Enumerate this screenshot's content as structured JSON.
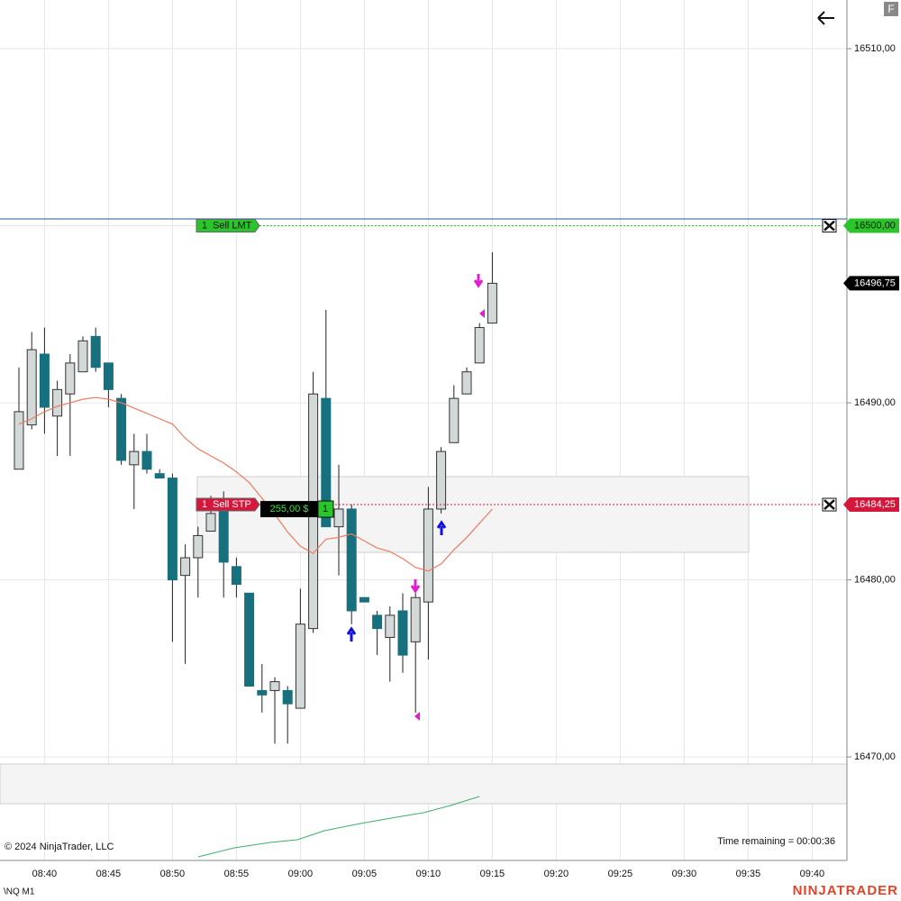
{
  "chart_data": {
    "type": "candlestick",
    "categories": [
      null,
      null,
      "08:40",
      null,
      null,
      null,
      null,
      "08:45",
      null,
      null,
      null,
      null,
      "08:50",
      null,
      null,
      null,
      null,
      "08:55",
      null,
      null,
      null,
      null,
      "09:00",
      null,
      null,
      null,
      null,
      "09:05",
      null,
      null,
      null,
      null,
      "09:10",
      null,
      null,
      null,
      null,
      "09:15",
      null,
      null,
      null,
      null,
      "09:20",
      null,
      null,
      null,
      null,
      "09:25",
      null,
      null,
      null,
      null,
      "09:30",
      null,
      null,
      null,
      null,
      "09:35",
      null,
      null,
      null,
      null,
      "09:40"
    ],
    "open": [
      16486.25,
      16488.75,
      16492.75,
      16489.25,
      16490.5,
      16491.75,
      16493.75,
      16492.25,
      16490.25,
      16486.5,
      16487.25,
      16486,
      16485.75,
      16480.25,
      16481.25,
      16482.75,
      16484.5,
      16480.75,
      16479.25,
      16473.75,
      16473.75,
      16473.75,
      16472.75,
      16477.25,
      16490.25,
      16483,
      16484,
      16479,
      16478,
      16476.75,
      16478.25,
      16476.5,
      16478.75,
      16484,
      16487.75,
      16490.5,
      16492.25,
      16494.5,
      null,
      null,
      null,
      null,
      null,
      null,
      null,
      null,
      null,
      null,
      null,
      null,
      null,
      null,
      null,
      null,
      null,
      null,
      null,
      null,
      null,
      null,
      null,
      null,
      null
    ],
    "high": [
      16492,
      16494,
      16494.25,
      16491.25,
      16492.75,
      16493.75,
      16494.25,
      16492.25,
      16490.5,
      16488.25,
      16488.25,
      16486.25,
      16486,
      16482,
      16483,
      16484.75,
      16485,
      16481.25,
      16479.25,
      16475.25,
      16474.5,
      16474,
      16479.5,
      16491.75,
      16495.25,
      16486.5,
      16484.25,
      16479,
      16478.25,
      16478.5,
      16479.25,
      16479.25,
      16485.25,
      16487.5,
      16491,
      16492,
      16494.5,
      16498.5,
      null,
      null,
      null,
      null,
      null,
      null,
      null,
      null,
      null,
      null,
      null,
      null,
      null,
      null,
      null,
      null,
      null,
      null,
      null,
      null,
      null,
      null,
      null,
      null,
      null
    ],
    "low": [
      16486.25,
      16488.5,
      16488.25,
      16487,
      16487,
      16491.75,
      16491.75,
      16489.75,
      16486.5,
      16484,
      16486,
      16485.75,
      16476.5,
      16475.25,
      16479,
      16482.75,
      16479,
      16479,
      16474,
      16472.5,
      16470.75,
      16470.75,
      16472.75,
      16477,
      16483,
      16480.25,
      16477.5,
      16478.75,
      16475.75,
      16474.25,
      16474.75,
      16472.5,
      16475.5,
      16483.75,
      16487.75,
      16490.5,
      16492.25,
      16494.5,
      null,
      null,
      null,
      null,
      null,
      null,
      null,
      null,
      null,
      null,
      null,
      null,
      null,
      null,
      null,
      null,
      null,
      null,
      null,
      null,
      null,
      null,
      null,
      null,
      null
    ],
    "close": [
      16489.5,
      16493,
      16489.75,
      16490.75,
      16492.25,
      16493.5,
      16492,
      16490.75,
      16486.75,
      16487.25,
      16486.25,
      16485.75,
      16480,
      16481.25,
      16482.5,
      16483.75,
      16481,
      16479.75,
      16474,
      16473.5,
      16474.25,
      16473,
      16477.5,
      16490.5,
      16483,
      16484,
      16478.25,
      16478.75,
      16477.25,
      16478,
      16475.75,
      16479,
      16484,
      16487.25,
      16490.25,
      16491.75,
      16494.25,
      16496.75,
      null,
      null,
      null,
      null,
      null,
      null,
      null,
      null,
      null,
      null,
      null,
      null,
      null,
      null,
      null,
      null,
      null,
      null,
      null,
      null,
      null,
      null,
      null,
      null,
      null
    ],
    "up_color": "#d3d8d8",
    "down_color": "#16707e",
    "moving_average": {
      "color": "#f07a5e",
      "values": [
        16488.8,
        16489.1,
        16489.5,
        16489.8,
        16490.0,
        16490.2,
        16490.3,
        16490.2,
        16490.0,
        16489.7,
        16489.4,
        16489.1,
        16488.8,
        16488.0,
        16487.4,
        16487.0,
        16486.6,
        16486.1,
        16485.5,
        16484.6,
        16483.7,
        16482.7,
        16481.9,
        16481.5,
        16482.3,
        16482.4,
        16482.6,
        16482.2,
        16481.8,
        16481.6,
        16481.2,
        16480.7,
        16480.5,
        16480.9,
        16481.7,
        16482.4,
        16483.2,
        16484.0,
        null,
        null,
        null,
        null,
        null,
        null,
        null,
        null,
        null,
        null,
        null,
        null,
        null,
        null,
        null,
        null,
        null,
        null,
        null,
        null,
        null,
        null,
        null,
        null,
        null
      ]
    },
    "ylim": [
      16464,
      16512.75
    ],
    "yticks": [
      {
        "value": 16470,
        "label": "16470,00"
      },
      {
        "value": 16480,
        "label": "16480,00"
      },
      {
        "value": 16490,
        "label": "16490,00"
      },
      {
        "value": 16500,
        "label": "16500,00"
      },
      {
        "value": 16510,
        "label": "16510,00"
      }
    ],
    "grid": true,
    "orders": [
      {
        "quantity": 1,
        "type": "Sell LMT",
        "price": 16500,
        "price_label": "16500,00",
        "color": "#2bc42b"
      },
      {
        "quantity": 1,
        "type": "Sell STP",
        "price": 16484.25,
        "price_label": "16484,25",
        "color": "#d6173c"
      }
    ],
    "last_price": {
      "value": 16496.75,
      "label": "16496,75"
    },
    "position": {
      "pnl": 255,
      "pnl_label": "255,00 $",
      "quantity": 1
    }
  },
  "footer": {
    "copyright": "© 2024 NinjaTrader, LLC",
    "time_remaining": "Time remaining = 00:00:36",
    "instrument": "\\NQ M1",
    "brand": "NINJATRADER",
    "button": "F"
  }
}
